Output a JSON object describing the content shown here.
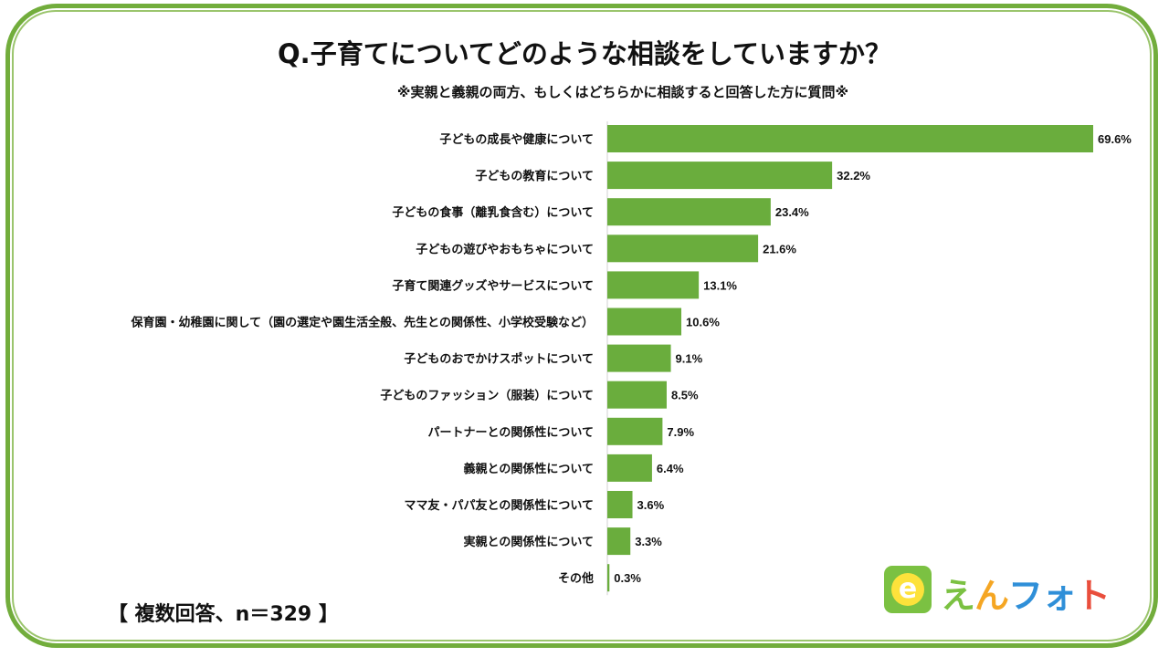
{
  "chart_data": {
    "type": "bar",
    "orientation": "horizontal",
    "title": "Q.子育てについてどのような相談をしていますか？",
    "subtitle": "※実親と義親の両方、もしくはどちらかに相談すると回答した方に質問※",
    "categories": [
      "子どもの成長や健康について",
      "子どもの教育について",
      "子どもの食事（離乳食含む）について",
      "子どもの遊びやおもちゃについて",
      "子育て関連グッズやサービスについて",
      "保育園・幼稚園に関して（園の選定や園生活全般、先生との関係性、小学校受験など）",
      "子どものおでかけスポットについて",
      "子どものファッション（服装）について",
      "パートナーとの関係性について",
      "義親との関係性について",
      "ママ友・パパ友との関係性について",
      "実親との関係性について",
      "その他"
    ],
    "values": [
      69.6,
      32.2,
      23.4,
      21.6,
      13.1,
      10.6,
      9.1,
      8.5,
      7.9,
      6.4,
      3.6,
      3.3,
      0.3
    ],
    "value_labels": [
      "69.6%",
      "32.2%",
      "23.4%",
      "21.6%",
      "13.1%",
      "10.6%",
      "9.1%",
      "8.5%",
      "7.9%",
      "6.4%",
      "3.6%",
      "3.3%",
      "0.3%"
    ],
    "bar_color": "#6aad3d",
    "grid": false,
    "legend": "none"
  },
  "note": "【 複数回答、n＝329 】",
  "logo": {
    "badge_letter": "e",
    "text": [
      "え",
      "ん",
      "フォ",
      "ト"
    ],
    "colors": [
      "#7bc142",
      "#f5a623",
      "#2f8fd8",
      "#e94e3c"
    ]
  },
  "colors": {
    "frame": "#72ad3c",
    "bar": "#6aad3d",
    "text": "#111111"
  }
}
